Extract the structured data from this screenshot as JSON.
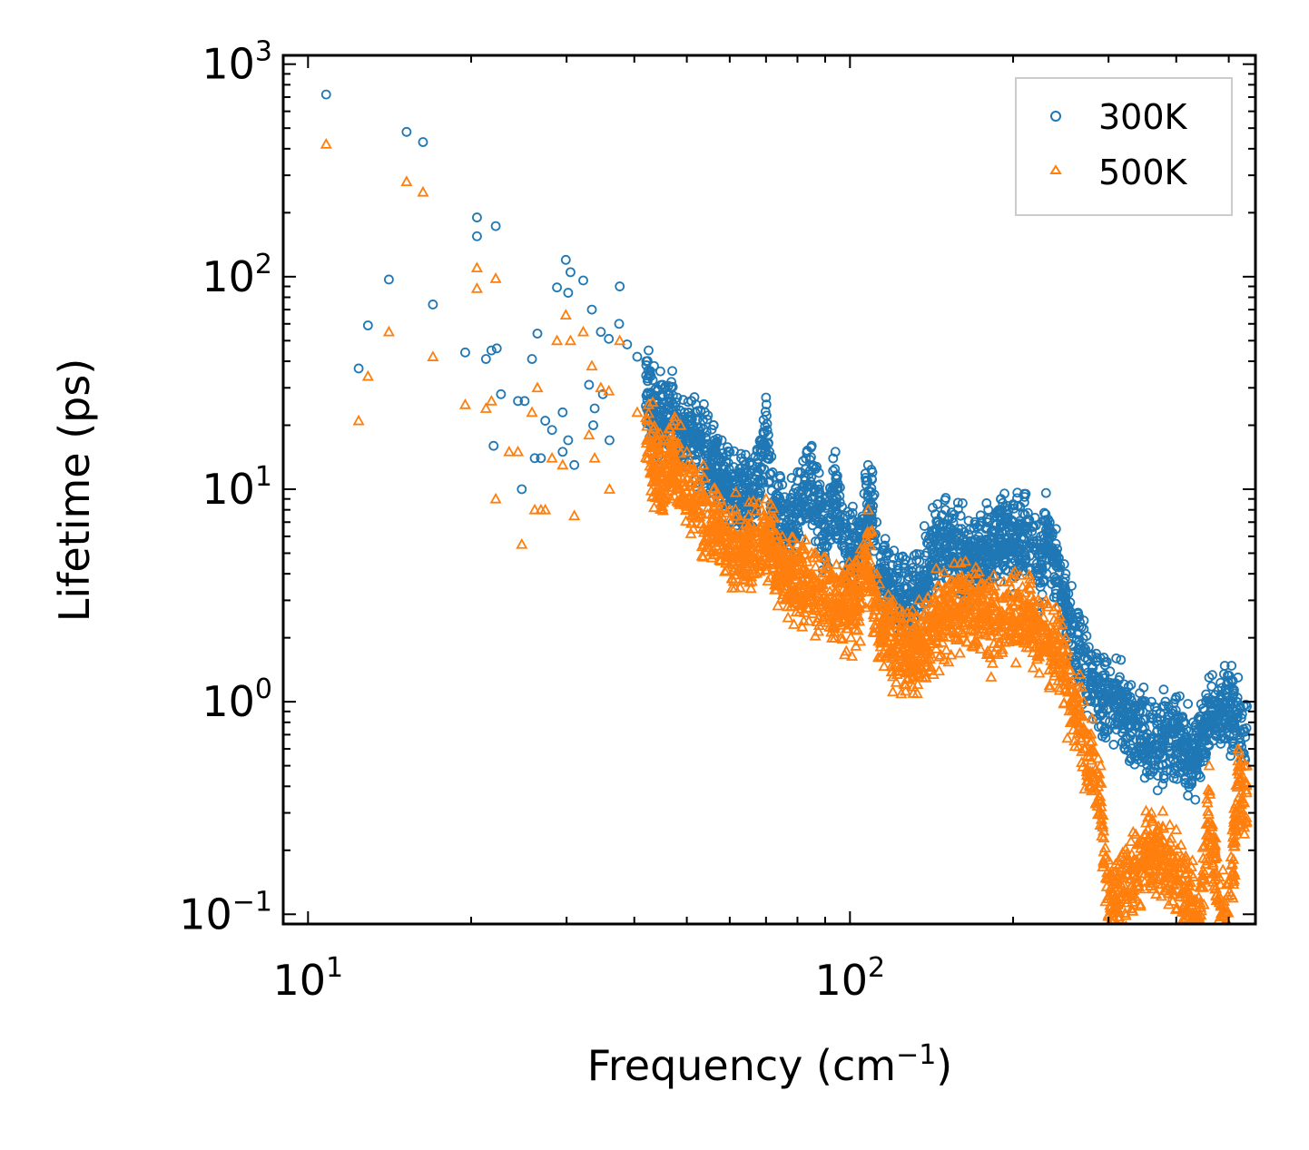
{
  "chart_data": {
    "type": "scatter",
    "xscale": "log",
    "yscale": "log",
    "xlabel": "Frequency (cm",
    "xlabel_sup": "−1",
    "xlabel_end": ")",
    "ylabel": "Lifetime (ps)",
    "xlim": [
      9,
      560
    ],
    "ylim": [
      0.09,
      1100
    ],
    "x_ticks": [
      {
        "value": 10,
        "base": "10",
        "exp": "1"
      },
      {
        "value": 100,
        "base": "10",
        "exp": "2"
      }
    ],
    "y_ticks": [
      {
        "value": 0.1,
        "base": "10",
        "exp": "−1"
      },
      {
        "value": 1,
        "base": "10",
        "exp": "0"
      },
      {
        "value": 10,
        "base": "10",
        "exp": "1"
      },
      {
        "value": 100,
        "base": "10",
        "exp": "2"
      },
      {
        "value": 1000,
        "base": "10",
        "exp": "3"
      }
    ],
    "legend": {
      "position": "top-right"
    },
    "series": [
      {
        "name": "300K",
        "marker": "circle",
        "color": "#1f77b4",
        "points": [
          [
            10.8,
            720
          ],
          [
            15.2,
            480
          ],
          [
            16.3,
            430
          ],
          [
            14.1,
            97
          ],
          [
            12.9,
            59
          ],
          [
            12.4,
            37
          ],
          [
            17.0,
            74
          ],
          [
            20.5,
            190
          ],
          [
            20.5,
            155
          ],
          [
            22.2,
            173
          ],
          [
            21.3,
            41
          ],
          [
            21.8,
            45
          ],
          [
            22.3,
            46
          ],
          [
            19.5,
            44
          ],
          [
            22.7,
            28
          ],
          [
            24.4,
            26
          ],
          [
            25.1,
            26
          ],
          [
            25.9,
            41
          ],
          [
            26.5,
            54
          ],
          [
            27.4,
            21
          ],
          [
            28.2,
            19
          ],
          [
            29.9,
            120
          ],
          [
            30.5,
            105
          ],
          [
            30.2,
            84
          ],
          [
            28.8,
            89
          ],
          [
            32.2,
            96
          ],
          [
            33.4,
            70
          ],
          [
            34.7,
            55
          ],
          [
            35.9,
            51
          ],
          [
            37.6,
            90
          ],
          [
            37.5,
            60
          ],
          [
            38.8,
            48
          ],
          [
            33.0,
            31
          ],
          [
            33.8,
            24
          ],
          [
            33.6,
            20
          ],
          [
            36.0,
            17
          ],
          [
            35.0,
            28
          ],
          [
            29.5,
            23
          ],
          [
            30.2,
            17
          ],
          [
            29.5,
            15
          ],
          [
            26.2,
            14
          ],
          [
            26.9,
            14
          ],
          [
            31.0,
            13
          ],
          [
            24.8,
            10
          ],
          [
            22.0,
            16
          ],
          [
            40.5,
            42
          ],
          [
            42.5,
            45
          ],
          [
            43.5,
            38
          ],
          [
            42.8,
            36
          ],
          [
            45.0,
            31
          ],
          [
            47.0,
            36
          ],
          [
            48.0,
            27
          ],
          [
            51.0,
            26
          ],
          [
            52.0,
            25
          ],
          [
            54.0,
            23
          ],
          [
            56.0,
            20
          ],
          [
            58.0,
            17
          ],
          [
            60.0,
            15
          ],
          [
            63.0,
            14
          ],
          [
            66.0,
            13
          ],
          [
            70.0,
            27
          ],
          [
            72.0,
            12
          ],
          [
            75.0,
            10.5
          ],
          [
            80.0,
            11
          ],
          [
            85.0,
            16
          ],
          [
            90.0,
            9
          ],
          [
            94.0,
            15
          ],
          [
            98.0,
            7.5
          ],
          [
            103.0,
            7
          ],
          [
            107.0,
            11
          ],
          [
            108.0,
            13
          ],
          [
            110.0,
            12
          ],
          [
            112.0,
            7
          ],
          [
            118.0,
            5
          ],
          [
            125.0,
            4.8
          ],
          [
            130.0,
            4.5
          ],
          [
            138.0,
            6
          ],
          [
            145.0,
            8.5
          ],
          [
            150.0,
            8
          ],
          [
            160.0,
            7.5
          ],
          [
            170.0,
            7
          ],
          [
            180.0,
            8
          ],
          [
            190.0,
            9
          ],
          [
            200.0,
            8.5
          ],
          [
            210.0,
            9.2
          ],
          [
            225.0,
            6
          ],
          [
            230.0,
            9.6
          ],
          [
            240.0,
            6.5
          ],
          [
            250.0,
            4
          ],
          [
            270.0,
            2.2
          ],
          [
            290.0,
            1.6
          ],
          [
            310.0,
            1.6
          ],
          [
            330.0,
            1.2
          ],
          [
            360.0,
            1.0
          ],
          [
            400.0,
            1.05
          ],
          [
            430.0,
            0.8
          ],
          [
            460.0,
            1.3
          ],
          [
            490.0,
            1.35
          ],
          [
            520.0,
            1.3
          ],
          [
            540.0,
            0.95
          ]
        ]
      },
      {
        "name": "500K",
        "marker": "triangle",
        "color": "#ff7f0e",
        "points": [
          [
            10.8,
            420
          ],
          [
            15.2,
            280
          ],
          [
            16.3,
            250
          ],
          [
            14.1,
            55
          ],
          [
            12.9,
            34
          ],
          [
            12.4,
            21
          ],
          [
            17.0,
            42
          ],
          [
            20.5,
            110
          ],
          [
            20.5,
            88
          ],
          [
            22.2,
            98
          ],
          [
            21.3,
            24
          ],
          [
            21.8,
            26
          ],
          [
            19.5,
            25
          ],
          [
            22.2,
            9
          ],
          [
            23.5,
            15
          ],
          [
            24.4,
            15
          ],
          [
            25.9,
            23
          ],
          [
            26.5,
            30
          ],
          [
            27.4,
            8
          ],
          [
            28.2,
            14
          ],
          [
            29.9,
            66
          ],
          [
            30.5,
            50
          ],
          [
            28.8,
            50
          ],
          [
            32.2,
            55
          ],
          [
            33.4,
            38
          ],
          [
            34.7,
            30
          ],
          [
            35.9,
            29
          ],
          [
            37.6,
            50
          ],
          [
            33.0,
            18
          ],
          [
            33.8,
            14
          ],
          [
            36.0,
            10
          ],
          [
            29.5,
            13
          ],
          [
            26.2,
            8
          ],
          [
            26.9,
            8
          ],
          [
            31.0,
            7.5
          ],
          [
            24.8,
            5.5
          ],
          [
            40.5,
            23
          ],
          [
            42.5,
            25
          ],
          [
            45.0,
            17
          ],
          [
            47.0,
            20
          ],
          [
            50.0,
            15
          ],
          [
            53.0,
            12
          ],
          [
            56.0,
            10
          ],
          [
            60.0,
            8
          ],
          [
            65.0,
            7.5
          ],
          [
            70.0,
            9
          ],
          [
            75.0,
            6
          ],
          [
            80.0,
            5.5
          ],
          [
            85.0,
            5
          ],
          [
            90.0,
            4.8
          ],
          [
            98.0,
            4.2
          ],
          [
            105.0,
            5
          ],
          [
            108.0,
            8
          ],
          [
            112.0,
            4
          ],
          [
            120.0,
            3
          ],
          [
            130.0,
            2.5
          ],
          [
            145.0,
            3.5
          ],
          [
            160.0,
            4.5
          ],
          [
            170.0,
            4
          ],
          [
            185.0,
            3.5
          ],
          [
            200.0,
            4
          ],
          [
            215.0,
            3.6
          ],
          [
            230.0,
            3
          ],
          [
            240.0,
            2.8
          ],
          [
            250.0,
            2
          ],
          [
            270.0,
            1.0
          ],
          [
            290.0,
            0.5
          ],
          [
            300.0,
            0.18
          ],
          [
            330.0,
            0.22
          ],
          [
            360.0,
            0.3
          ],
          [
            400.0,
            0.25
          ],
          [
            430.0,
            0.15
          ],
          [
            440.0,
            0.12
          ],
          [
            460.0,
            0.5
          ],
          [
            480.0,
            0.15
          ],
          [
            500.0,
            0.14
          ],
          [
            520.0,
            0.6
          ],
          [
            540.0,
            0.5
          ]
        ]
      }
    ]
  }
}
